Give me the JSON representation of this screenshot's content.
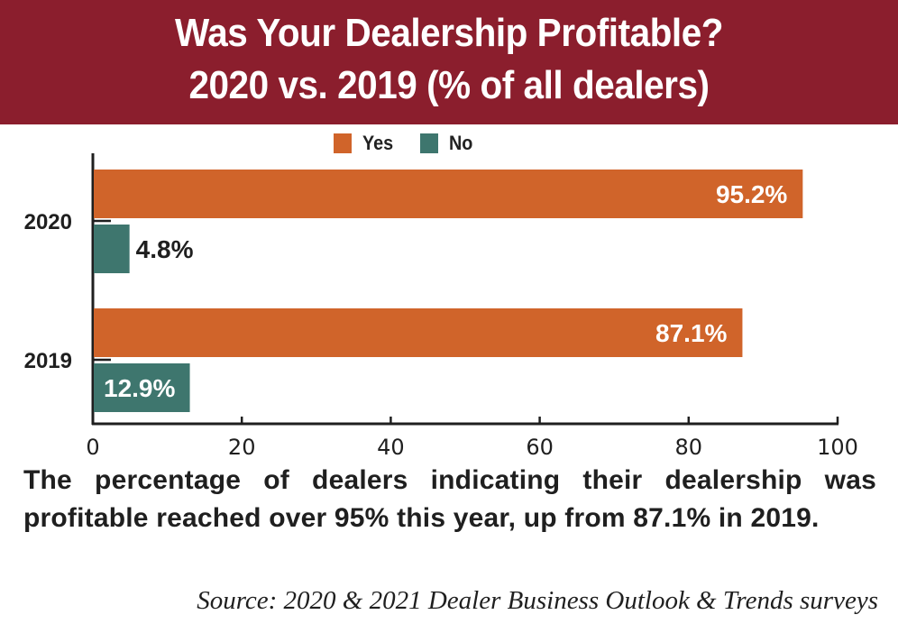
{
  "banner": {
    "title_line1": "Was Your Dealership Profitable?",
    "title_line2": "2020 vs. 2019 (% of all dealers)",
    "background_color": "#8b1e2d"
  },
  "legend": [
    {
      "label": "Yes",
      "color": "#d0642a"
    },
    {
      "label": "No",
      "color": "#3e766e"
    }
  ],
  "chart_data": {
    "type": "bar",
    "orientation": "horizontal",
    "title": "Was Your Dealership Profitable? 2020 vs. 2019 (% of all dealers)",
    "categories": [
      "2020",
      "2019"
    ],
    "series": [
      {
        "name": "Yes",
        "color": "#d0642a",
        "values": [
          95.2,
          87.1
        ],
        "labels": [
          "95.2%",
          "87.1%"
        ]
      },
      {
        "name": "No",
        "color": "#3e766e",
        "values": [
          4.8,
          12.9
        ],
        "labels": [
          "4.8%",
          "12.9%"
        ]
      }
    ],
    "xlim": [
      0,
      100
    ],
    "xticks": [
      0,
      20,
      40,
      60,
      80,
      100
    ],
    "xtick_labels": [
      "0",
      "20",
      "40",
      "60",
      "80",
      "100"
    ],
    "xlabel": "",
    "ylabel": "",
    "grid": false,
    "legend_position": "top-center"
  },
  "caption": "The percentage of dealers indicating their dealership was profitable reached over 95% this year, up from 87.1% in 2019.",
  "source": "Source: 2020 & 2021 Dealer Business Outlook & Trends surveys"
}
